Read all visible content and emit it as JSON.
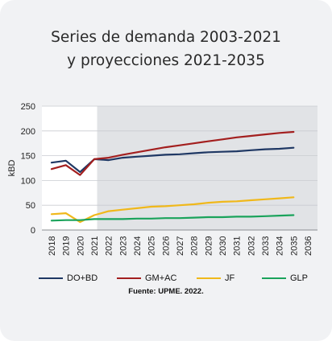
{
  "title_lines": [
    "Series de demanda 2003-2021",
    "y proyecciones 2021-2035"
  ],
  "source": "Fuente: UPME. 2022.",
  "chart_data": {
    "type": "line",
    "ylabel": "kBD",
    "ylim": [
      0,
      250
    ],
    "yticks": [
      0,
      50,
      100,
      150,
      200,
      250
    ],
    "xlim": [
      2018,
      2036
    ],
    "x_ticks": [
      2018,
      2019,
      2020,
      2021,
      2022,
      2023,
      2024,
      2025,
      2026,
      2027,
      2028,
      2029,
      2030,
      2031,
      2032,
      2033,
      2034,
      2035,
      2036
    ],
    "projection_shade_start": 2021.2,
    "grid": "horizontal",
    "legend_position": "bottom",
    "x": [
      2018,
      2019,
      2020,
      2021,
      2022,
      2023,
      2024,
      2025,
      2026,
      2027,
      2028,
      2029,
      2030,
      2031,
      2032,
      2033,
      2034,
      2035
    ],
    "series": [
      {
        "name": "DO+BD",
        "color": "#1f3864",
        "values": [
          136,
          140,
          117,
          143,
          141,
          146,
          148,
          150,
          152,
          153,
          155,
          157,
          158,
          159,
          161,
          163,
          164,
          166
        ]
      },
      {
        "name": "GM+AC",
        "color": "#a31f1f",
        "values": [
          123,
          131,
          111,
          143,
          146,
          152,
          157,
          162,
          167,
          171,
          175,
          179,
          183,
          187,
          190,
          193,
          196,
          198
        ]
      },
      {
        "name": "JF",
        "color": "#f0b81a",
        "values": [
          32,
          34,
          16,
          30,
          38,
          41,
          44,
          47,
          48,
          50,
          52,
          55,
          57,
          58,
          60,
          62,
          64,
          66
        ]
      },
      {
        "name": "GLP",
        "color": "#1aa35b",
        "values": [
          19,
          20,
          20,
          22,
          22,
          22,
          23,
          23,
          24,
          24,
          25,
          26,
          26,
          27,
          27,
          28,
          29,
          30
        ]
      }
    ]
  }
}
